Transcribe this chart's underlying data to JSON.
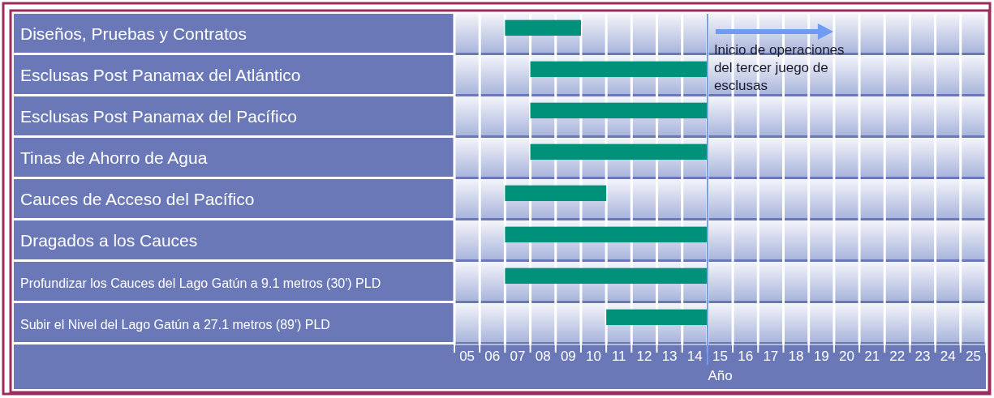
{
  "chart_data": {
    "type": "bar",
    "orientation": "horizontal",
    "xlabel": "Año",
    "categories": [
      "Diseños, Pruebas y Contratos",
      "Esclusas Post Panamax del Atlántico",
      "Esclusas Post Panamax del Pacífico",
      "Tinas de Ahorro de Agua",
      "Cauces de Acceso del Pacífico",
      "Dragados a los Cauces",
      "Profundizar los Cauces del Lago Gatún a 9.1 metros (30') PLD",
      "Subir el Nivel del Lago Gatún a 27.1 metros (89') PLD"
    ],
    "base": [
      6.5,
      7.5,
      7.5,
      7.5,
      6.5,
      6.5,
      6.5,
      10.5
    ],
    "values": [
      3,
      7,
      7,
      7,
      4,
      8,
      8,
      4
    ],
    "color": "#00917a",
    "xlim": [
      4.5,
      25.5
    ],
    "xticks": [
      {
        "value": 4.5,
        "label": null
      },
      {
        "value": 5,
        "label": "05"
      },
      {
        "value": 5.5,
        "label": null
      },
      {
        "value": 6,
        "label": "06"
      },
      {
        "value": 6.5,
        "label": null
      },
      {
        "value": 7,
        "label": "07"
      },
      {
        "value": 7.5,
        "label": null
      },
      {
        "value": 8,
        "label": "08"
      },
      {
        "value": 8.5,
        "label": null
      },
      {
        "value": 9,
        "label": "09"
      },
      {
        "value": 9.5,
        "label": null
      },
      {
        "value": 10,
        "label": "10"
      },
      {
        "value": 10.5,
        "label": null
      },
      {
        "value": 11,
        "label": "11"
      },
      {
        "value": 11.5,
        "label": null
      },
      {
        "value": 12,
        "label": "12"
      },
      {
        "value": 12.5,
        "label": null
      },
      {
        "value": 13,
        "label": "13"
      },
      {
        "value": 13.5,
        "label": null
      },
      {
        "value": 14,
        "label": "14"
      },
      {
        "value": 14.5,
        "label": null
      },
      {
        "value": 15,
        "label": "15"
      },
      {
        "value": 15.5,
        "label": null
      },
      {
        "value": 16,
        "label": "16"
      },
      {
        "value": 16.5,
        "label": null
      },
      {
        "value": 17,
        "label": "17"
      },
      {
        "value": 17.5,
        "label": null
      },
      {
        "value": 18,
        "label": "18"
      },
      {
        "value": 18.5,
        "label": null
      },
      {
        "value": 19,
        "label": "19"
      },
      {
        "value": 19.5,
        "label": null
      },
      {
        "value": 20,
        "label": "20"
      },
      {
        "value": 20.5,
        "label": null
      },
      {
        "value": 21,
        "label": "21"
      },
      {
        "value": 21.5,
        "label": null
      },
      {
        "value": 22,
        "label": "22"
      },
      {
        "value": 22.5,
        "label": null
      },
      {
        "value": 23,
        "label": "23"
      },
      {
        "value": 23.5,
        "label": null
      },
      {
        "value": 24,
        "label": "24"
      },
      {
        "value": 24.5,
        "label": null
      },
      {
        "value": 25,
        "label": "25"
      },
      {
        "value": 25.5,
        "label": null
      }
    ],
    "grid": "x",
    "ref_lines": [
      {
        "axis": "x",
        "value": 14.5,
        "label": "Inicio de operaciones del tercer juego de esclusas",
        "color": "#6f9cf2"
      }
    ]
  }
}
